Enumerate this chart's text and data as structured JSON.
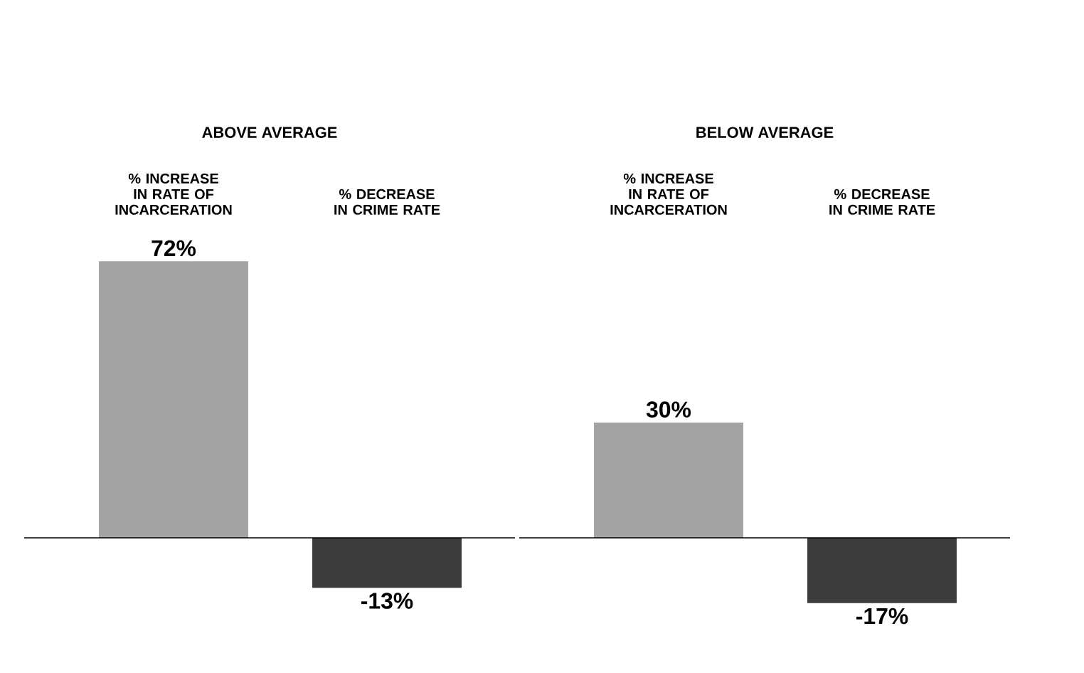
{
  "chart_data": [
    {
      "type": "bar",
      "title": "ABOVE AVERAGE",
      "categories": [
        "% INCREASE IN RATE OF INCARCERATION",
        "% DECREASE IN CRIME RATE"
      ],
      "values": [
        72,
        -13
      ],
      "value_labels": [
        "72%",
        "-13%"
      ],
      "colors": [
        "#a3a3a3",
        "#3c3c3c"
      ]
    },
    {
      "type": "bar",
      "title": "BELOW AVERAGE",
      "categories": [
        "% INCREASE IN RATE OF INCARCERATION",
        "% DECREASE IN CRIME RATE"
      ],
      "values": [
        30,
        -17
      ],
      "value_labels": [
        "30%",
        "-17%"
      ],
      "colors": [
        "#a3a3a3",
        "#3c3c3c"
      ]
    }
  ]
}
